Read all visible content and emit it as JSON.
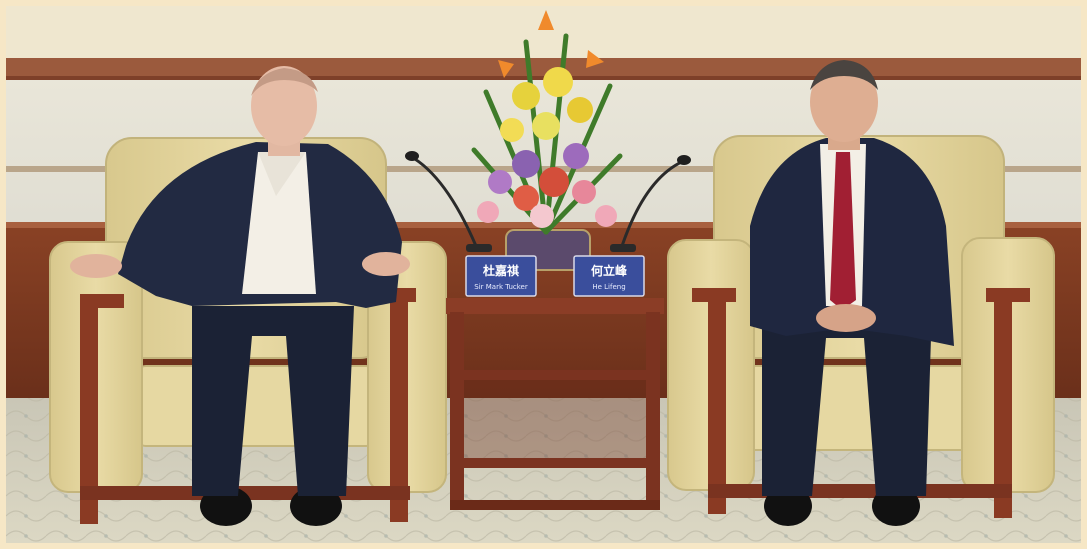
{
  "placards": [
    {
      "chinese_name": "杜嘉祺",
      "english_name": "Sir Mark Tucker"
    },
    {
      "chinese_name": "何立峰",
      "english_name": "He Lifeng"
    }
  ],
  "colors": {
    "outer_border": "#f6e7c6",
    "wall": "#e6e3d6",
    "wall_band": "#9b5a3d",
    "wainscot": "#7a3b22",
    "armchair_fabric": "#e2d39a",
    "armchair_wood": "#8a3a23",
    "side_table": "#7b3320",
    "placard_blue": "#3a4e9c",
    "carpet": "#d7d3bf"
  }
}
